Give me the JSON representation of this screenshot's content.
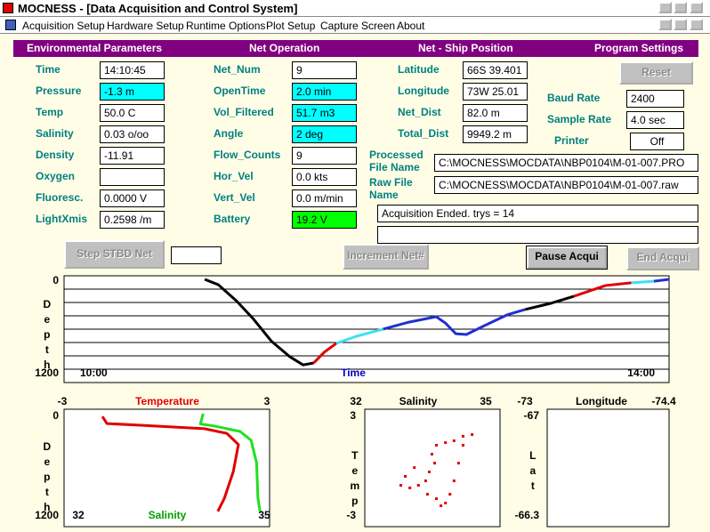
{
  "window": {
    "title": "MOCNESS - [Data Acquisition and Control System]",
    "menu": [
      "Acquisition Setup",
      "Hardware Setup",
      "Runtime Options",
      "Plot Setup",
      "Capture Screen",
      "About"
    ]
  },
  "sections": [
    "Environmental Parameters",
    "Net Operation",
    "Net - Ship Position",
    "Program Settings"
  ],
  "environmental": [
    {
      "label": "Time",
      "value": "14:10:45"
    },
    {
      "label": "Pressure",
      "value": "-1.3 m",
      "color": "#00ffff"
    },
    {
      "label": "Temp",
      "value": "50.0 C"
    },
    {
      "label": "Salinity",
      "value": "0.03 o/oo"
    },
    {
      "label": "Density",
      "value": "-11.91"
    },
    {
      "label": "Oxygen"
    },
    {
      "label": "Fluoresc.",
      "value": "0.0000 V"
    },
    {
      "label": "LightXmis",
      "value": "0.2598 /m"
    }
  ],
  "net_operation": [
    {
      "label": "Net_Num",
      "value": "9"
    },
    {
      "label": "OpenTime",
      "value": "2.0 min",
      "color": "#00ffff"
    },
    {
      "label": "Vol_Filtered",
      "value": "51.7 m3",
      "color": "#00ffff"
    },
    {
      "label": "Angle",
      "value": "2 deg",
      "color": "#00ffff"
    },
    {
      "label": "Flow_Counts",
      "value": "9"
    },
    {
      "label": "Hor_Vel",
      "value": "0.0 kts"
    },
    {
      "label": "Vert_Vel",
      "value": "0.0 m/min"
    },
    {
      "label": "Battery",
      "value": "19.2 V",
      "color": "#00ff00"
    }
  ],
  "position": [
    {
      "label": "Latitude",
      "value": "66S 39.401"
    },
    {
      "label": "Longitude",
      "value": "73W 25.01"
    },
    {
      "label": "Net_Dist",
      "value": "82.0 m"
    },
    {
      "label": "Total_Dist",
      "value": "9949.2 m"
    }
  ],
  "files": [
    {
      "label": "Processed File Name",
      "value": "C:\\MOCNESS\\MOCDATA\\NBP0104\\M-01-007.PRO"
    },
    {
      "label": "Raw File Name",
      "value": "C:\\MOCNESS\\MOCDATA\\NBP0104\\M-01-007.raw"
    }
  ],
  "status": "Acquisition Ended. trys = 14",
  "settings": {
    "reset": "Reset",
    "fields": [
      {
        "label": "Baud Rate",
        "value": "2400"
      },
      {
        "label": "Sample Rate",
        "value": "4.0 sec"
      },
      {
        "label": "Printer",
        "value": "Off"
      }
    ]
  },
  "buttons": [
    {
      "label": "Step STBD Net",
      "enabled": false
    },
    {
      "label": "Increment Net#",
      "enabled": false
    },
    {
      "label": "Pause Acqui",
      "enabled": true
    },
    {
      "label": "End Acqui",
      "enabled": false
    }
  ],
  "chart_data": [
    {
      "type": "line",
      "x_label": "Time",
      "x_label_color": "#0000c0",
      "y_label": "Depth",
      "grid": true,
      "xlim": [
        10,
        14
      ],
      "xticks": [
        {
          "value": 10,
          "label": "10:00"
        },
        {
          "value": 14,
          "label": "14:00"
        }
      ],
      "ylim": [
        0,
        1200
      ],
      "yticks": [
        0,
        1200
      ],
      "series": [
        {
          "color": "#000000",
          "x": [
            10.93,
            11.02,
            11.14,
            11.25,
            11.37,
            11.49,
            11.58,
            11.65
          ],
          "values": [
            0,
            70,
            280,
            510,
            800,
            1000,
            1110,
            1085
          ]
        },
        {
          "color": "#e00000",
          "x": [
            11.65,
            11.72,
            11.8
          ],
          "values": [
            1085,
            945,
            830
          ]
        },
        {
          "color": "#40e0f0",
          "x": [
            11.8,
            11.93,
            12.11
          ],
          "values": [
            830,
            740,
            645
          ]
        },
        {
          "color": "#2030d0",
          "x": [
            12.11,
            12.28,
            12.46,
            12.52,
            12.59,
            12.66,
            12.78,
            12.93,
            13.05
          ],
          "values": [
            645,
            555,
            485,
            565,
            705,
            715,
            600,
            460,
            390
          ]
        },
        {
          "color": "#000000",
          "x": [
            13.05,
            13.22,
            13.37
          ],
          "values": [
            390,
            310,
            220
          ]
        },
        {
          "color": "#e00000",
          "x": [
            13.37,
            13.58,
            13.75
          ],
          "values": [
            220,
            80,
            45
          ]
        },
        {
          "color": "#40e0f0",
          "x": [
            13.75,
            13.9
          ],
          "values": [
            45,
            25
          ]
        },
        {
          "color": "#2030d0",
          "x": [
            13.9,
            14
          ],
          "values": [
            25,
            0
          ]
        }
      ]
    },
    {
      "type": "line",
      "x_label": "Temperature",
      "x_label_color": "#e00000",
      "x2_label": "Salinity",
      "x2_label_color": "#00a000",
      "y_label": "Depth",
      "xlim": [
        -3,
        3
      ],
      "xticks": [
        -3,
        3
      ],
      "x2lim": [
        32,
        35
      ],
      "x2ticks": [
        32,
        35
      ],
      "ylim": [
        0,
        1200
      ],
      "yticks": [
        0,
        1200
      ],
      "series": [
        {
          "color": "#e00000",
          "x": [
            -1.88,
            -1.75,
            -0.71,
            1.1,
            1.75,
            2.09,
            1.94,
            1.68,
            1.49
          ],
          "values": [
            40,
            115,
            135,
            170,
            220,
            340,
            630,
            915,
            1055
          ]
        },
        {
          "color": "#20e020",
          "axis": "x2",
          "x": [
            34.03,
            33.99,
            34.18,
            34.57,
            34.73,
            34.81,
            34.83,
            34.86
          ],
          "values": [
            10,
            120,
            140,
            200,
            295,
            535,
            915,
            1055
          ]
        }
      ]
    },
    {
      "type": "scatter",
      "x_label": "Salinity",
      "y_label": "Temp",
      "xlim": [
        32,
        35
      ],
      "xticks": [
        32,
        35
      ],
      "ylim": [
        -3,
        3
      ],
      "yticks": [
        -3,
        3
      ],
      "series": [
        {
          "color": "#e00000",
          "x": [
            34.37,
            34.17,
            33.97,
            33.78,
            33.58,
            33.48,
            33.54,
            33.42,
            33.34,
            33.18,
            32.99,
            32.89,
            33.09,
            32.79,
            34.17,
            34.07,
            33.97,
            33.88,
            33.78,
            33.68,
            33.58,
            33.38
          ],
          "values": [
            1.76,
            1.66,
            1.4,
            1.29,
            1.14,
            0.62,
            0.1,
            -0.41,
            -0.93,
            -1.19,
            -1.34,
            -0.67,
            -0.16,
            -1.19,
            1.14,
            0.1,
            -0.93,
            -1.71,
            -2.22,
            -2.38,
            -1.97,
            -1.71
          ]
        }
      ]
    },
    {
      "type": "scatter",
      "x_label": "Longitude",
      "y_label": "Lat",
      "xlim": [
        -73,
        -74.4
      ],
      "xticks": [
        -73,
        -74.4
      ],
      "ylim": [
        -67,
        -66.3
      ],
      "yticks": [
        -67,
        -66.3
      ],
      "series": [
        {
          "color": "#e00000",
          "x": [],
          "values": []
        }
      ]
    }
  ]
}
